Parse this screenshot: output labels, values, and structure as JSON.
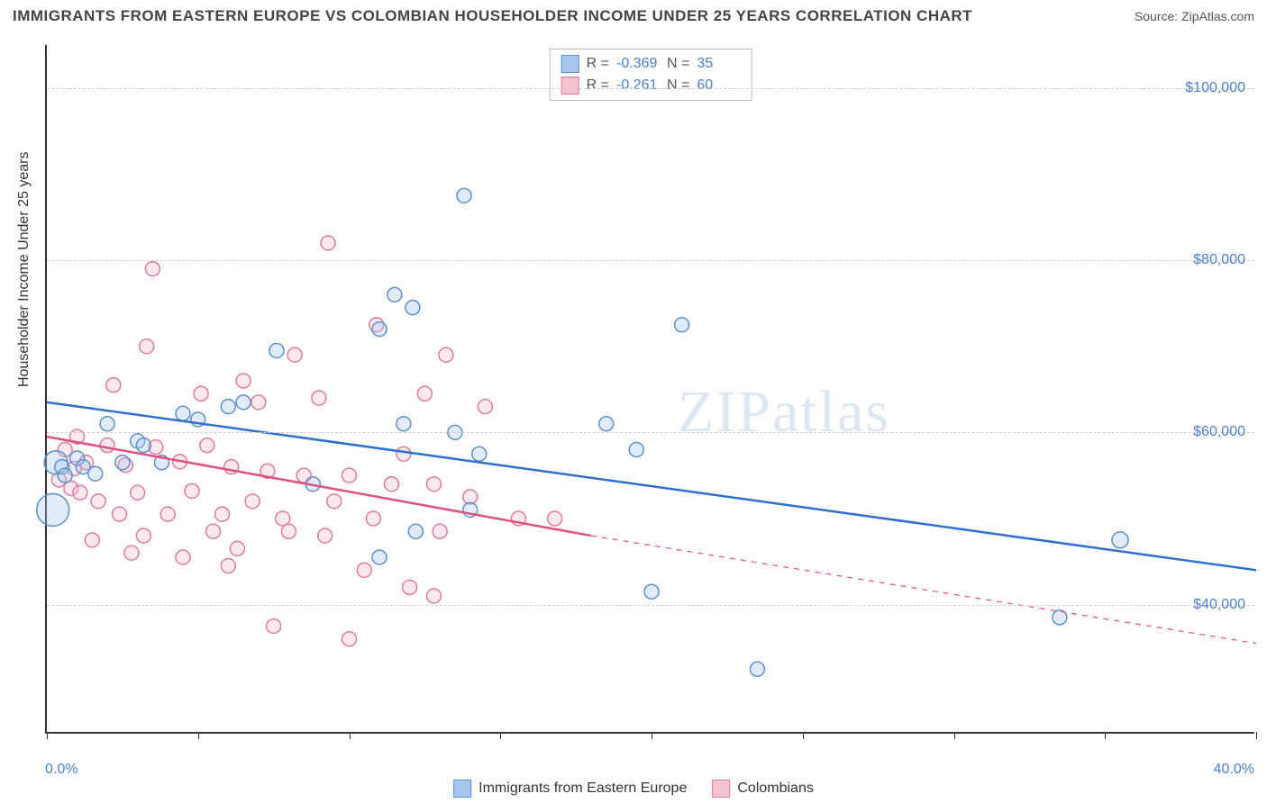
{
  "title": "IMMIGRANTS FROM EASTERN EUROPE VS COLOMBIAN HOUSEHOLDER INCOME UNDER 25 YEARS CORRELATION CHART",
  "source_label": "Source: ZipAtlas.com",
  "watermark_text": "ZIPatlas",
  "y_axis_label": "Householder Income Under 25 years",
  "chart": {
    "type": "scatter",
    "background_color": "#ffffff",
    "grid_color": "#cccccc",
    "axis_color": "#333333",
    "tick_label_color": "#4a7fd4",
    "x_min": 0.0,
    "x_max": 40.0,
    "x_min_label": "0.0%",
    "x_max_label": "40.0%",
    "x_ticks_pct": [
      0,
      5,
      10,
      15,
      20,
      25,
      30,
      35,
      40
    ],
    "y_min": 25000,
    "y_max": 105000,
    "y_gridlines": [
      40000,
      60000,
      80000,
      100000
    ],
    "y_tick_labels": [
      "$40,000",
      "$60,000",
      "$80,000",
      "$100,000"
    ],
    "marker_radius": 8,
    "marker_stroke_width": 1.5,
    "marker_fill_opacity": 0.35,
    "trend_line_width": 2.5
  },
  "series": [
    {
      "id": "eastern_europe",
      "label": "Immigrants from Eastern Europe",
      "color_fill": "#a9c7ee",
      "color_stroke": "#5a8fd0",
      "trend_color": "#2e6fd0",
      "R": "-0.369",
      "N": "35",
      "trend": {
        "x1": 0.0,
        "y1": 63500,
        "x2": 40.0,
        "y2": 44000,
        "dash_after_x": 40.0
      },
      "points": [
        {
          "x": 13.8,
          "y": 87500,
          "r": 8
        },
        {
          "x": 11.5,
          "y": 76000,
          "r": 8
        },
        {
          "x": 12.1,
          "y": 74500,
          "r": 8
        },
        {
          "x": 21.0,
          "y": 72500,
          "r": 8
        },
        {
          "x": 7.6,
          "y": 69500,
          "r": 8
        },
        {
          "x": 11.0,
          "y": 72000,
          "r": 8
        },
        {
          "x": 6.0,
          "y": 63000,
          "r": 8
        },
        {
          "x": 6.5,
          "y": 63500,
          "r": 8
        },
        {
          "x": 4.5,
          "y": 62200,
          "r": 8
        },
        {
          "x": 11.8,
          "y": 61000,
          "r": 8
        },
        {
          "x": 13.5,
          "y": 60000,
          "r": 8
        },
        {
          "x": 18.5,
          "y": 61000,
          "r": 8
        },
        {
          "x": 2.0,
          "y": 61000,
          "r": 8
        },
        {
          "x": 1.0,
          "y": 57000,
          "r": 8
        },
        {
          "x": 0.3,
          "y": 56500,
          "r": 13
        },
        {
          "x": 0.5,
          "y": 56000,
          "r": 8
        },
        {
          "x": 2.5,
          "y": 56500,
          "r": 8
        },
        {
          "x": 3.8,
          "y": 56500,
          "r": 8
        },
        {
          "x": 19.5,
          "y": 58000,
          "r": 8
        },
        {
          "x": 14.3,
          "y": 57500,
          "r": 8
        },
        {
          "x": 8.8,
          "y": 54000,
          "r": 8
        },
        {
          "x": 0.2,
          "y": 51000,
          "r": 18
        },
        {
          "x": 12.2,
          "y": 48500,
          "r": 8
        },
        {
          "x": 14.0,
          "y": 51000,
          "r": 8
        },
        {
          "x": 11.0,
          "y": 45500,
          "r": 8
        },
        {
          "x": 35.5,
          "y": 47500,
          "r": 9
        },
        {
          "x": 20.0,
          "y": 41500,
          "r": 8
        },
        {
          "x": 33.5,
          "y": 38500,
          "r": 8
        },
        {
          "x": 23.5,
          "y": 32500,
          "r": 8
        },
        {
          "x": 3.0,
          "y": 59000,
          "r": 8
        },
        {
          "x": 3.2,
          "y": 58500,
          "r": 8
        },
        {
          "x": 1.2,
          "y": 56000,
          "r": 8
        },
        {
          "x": 0.6,
          "y": 55000,
          "r": 8
        },
        {
          "x": 1.6,
          "y": 55200,
          "r": 8
        },
        {
          "x": 5.0,
          "y": 61500,
          "r": 8
        }
      ]
    },
    {
      "id": "colombians",
      "label": "Colombians",
      "color_fill": "#f4c1cf",
      "color_stroke": "#e17a9b",
      "trend_color": "#e0527e",
      "R": "-0.261",
      "N": "60",
      "trend": {
        "x1": 0.0,
        "y1": 59500,
        "x2": 18.0,
        "y2": 48000,
        "dash_after_x": 18.0,
        "dash_x2": 40.0,
        "dash_y2": 35500
      },
      "points": [
        {
          "x": 9.3,
          "y": 82000,
          "r": 8
        },
        {
          "x": 3.5,
          "y": 79000,
          "r": 8
        },
        {
          "x": 10.9,
          "y": 72500,
          "r": 8
        },
        {
          "x": 13.2,
          "y": 69000,
          "r": 8
        },
        {
          "x": 8.2,
          "y": 69000,
          "r": 8
        },
        {
          "x": 3.3,
          "y": 70000,
          "r": 8
        },
        {
          "x": 6.5,
          "y": 66000,
          "r": 8
        },
        {
          "x": 2.2,
          "y": 65500,
          "r": 8
        },
        {
          "x": 5.1,
          "y": 64500,
          "r": 8
        },
        {
          "x": 7.0,
          "y": 63500,
          "r": 8
        },
        {
          "x": 9.0,
          "y": 64000,
          "r": 8
        },
        {
          "x": 12.5,
          "y": 64500,
          "r": 8
        },
        {
          "x": 14.5,
          "y": 63000,
          "r": 8
        },
        {
          "x": 1.0,
          "y": 59500,
          "r": 8
        },
        {
          "x": 2.0,
          "y": 58500,
          "r": 8
        },
        {
          "x": 0.6,
          "y": 58000,
          "r": 8
        },
        {
          "x": 3.6,
          "y": 58300,
          "r": 8
        },
        {
          "x": 5.3,
          "y": 58500,
          "r": 8
        },
        {
          "x": 1.3,
          "y": 56500,
          "r": 8
        },
        {
          "x": 2.6,
          "y": 56200,
          "r": 8
        },
        {
          "x": 4.4,
          "y": 56600,
          "r": 8
        },
        {
          "x": 6.1,
          "y": 56000,
          "r": 8
        },
        {
          "x": 7.3,
          "y": 55500,
          "r": 8
        },
        {
          "x": 8.5,
          "y": 55000,
          "r": 8
        },
        {
          "x": 10.0,
          "y": 55000,
          "r": 8
        },
        {
          "x": 11.4,
          "y": 54000,
          "r": 8
        },
        {
          "x": 12.8,
          "y": 54000,
          "r": 8
        },
        {
          "x": 3.0,
          "y": 53000,
          "r": 8
        },
        {
          "x": 4.8,
          "y": 53200,
          "r": 8
        },
        {
          "x": 0.8,
          "y": 53500,
          "r": 8
        },
        {
          "x": 1.7,
          "y": 52000,
          "r": 8
        },
        {
          "x": 6.8,
          "y": 52000,
          "r": 8
        },
        {
          "x": 9.5,
          "y": 52000,
          "r": 8
        },
        {
          "x": 14.0,
          "y": 52500,
          "r": 8
        },
        {
          "x": 2.4,
          "y": 50500,
          "r": 8
        },
        {
          "x": 4.0,
          "y": 50500,
          "r": 8
        },
        {
          "x": 5.8,
          "y": 50500,
          "r": 8
        },
        {
          "x": 7.8,
          "y": 50000,
          "r": 8
        },
        {
          "x": 10.8,
          "y": 50000,
          "r": 8
        },
        {
          "x": 15.6,
          "y": 50000,
          "r": 8
        },
        {
          "x": 16.8,
          "y": 50000,
          "r": 8
        },
        {
          "x": 13.0,
          "y": 48500,
          "r": 8
        },
        {
          "x": 1.5,
          "y": 47500,
          "r": 8
        },
        {
          "x": 3.2,
          "y": 48000,
          "r": 8
        },
        {
          "x": 5.5,
          "y": 48500,
          "r": 8
        },
        {
          "x": 8.0,
          "y": 48500,
          "r": 8
        },
        {
          "x": 9.2,
          "y": 48000,
          "r": 8
        },
        {
          "x": 12.0,
          "y": 42000,
          "r": 8
        },
        {
          "x": 12.8,
          "y": 41000,
          "r": 8
        },
        {
          "x": 10.5,
          "y": 44000,
          "r": 8
        },
        {
          "x": 6.0,
          "y": 44500,
          "r": 8
        },
        {
          "x": 7.5,
          "y": 37500,
          "r": 8
        },
        {
          "x": 10.0,
          "y": 36000,
          "r": 8
        },
        {
          "x": 4.5,
          "y": 45500,
          "r": 8
        },
        {
          "x": 2.8,
          "y": 46000,
          "r": 8
        },
        {
          "x": 6.3,
          "y": 46500,
          "r": 8
        },
        {
          "x": 0.9,
          "y": 55800,
          "r": 8
        },
        {
          "x": 0.4,
          "y": 54500,
          "r": 8
        },
        {
          "x": 1.1,
          "y": 53000,
          "r": 8
        },
        {
          "x": 11.8,
          "y": 57500,
          "r": 8
        }
      ]
    }
  ],
  "legend_top": {
    "R_label": "R =",
    "N_label": "N ="
  },
  "legend_bottom_labels": {
    "series1": "Immigrants from Eastern Europe",
    "series2": "Colombians"
  }
}
